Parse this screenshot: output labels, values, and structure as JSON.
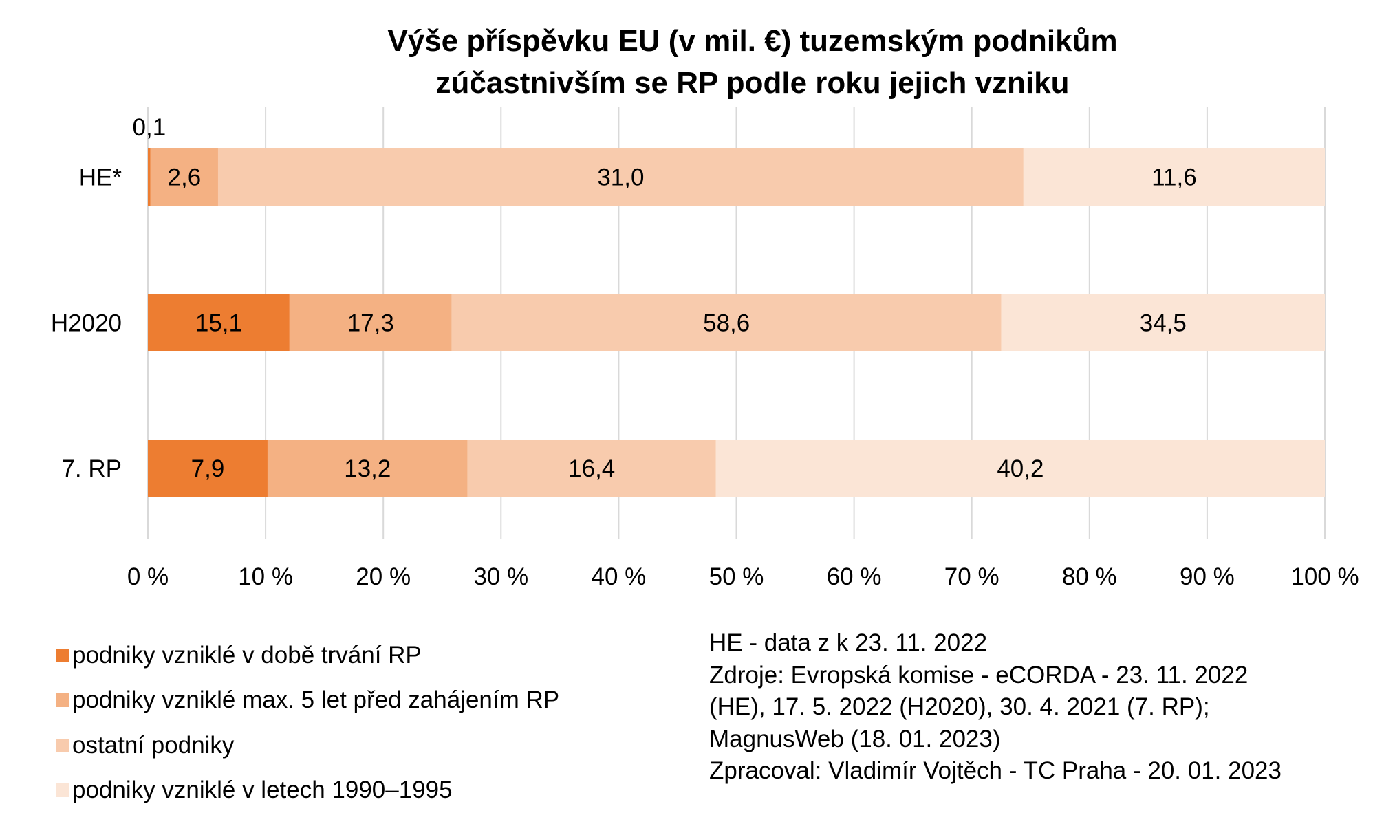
{
  "chart_data": {
    "type": "bar",
    "orientation": "horizontal",
    "stacked": "percent",
    "title": [
      "Výše příspěvku EU (v mil. €) tuzemským podnikům",
      "zúčastnivším se RP podle roku jejich vzniku"
    ],
    "categories": [
      "HE*",
      "H2020",
      "7. RP"
    ],
    "series": [
      {
        "name": "podniky vzniklé v době trvání RP",
        "color": "#ED7D31",
        "values": [
          0.1,
          15.1,
          7.9
        ],
        "labels": [
          "0,1",
          "15,1",
          "7,9"
        ]
      },
      {
        "name": "podniky vzniklé max. 5 let před zahájením RP",
        "color": "#F4B183",
        "values": [
          2.6,
          17.3,
          13.2
        ],
        "labels": [
          "2,6",
          "17,3",
          "13,2"
        ]
      },
      {
        "name": "ostatní podniky",
        "color": "#F8CBAD",
        "values": [
          31.0,
          58.6,
          16.4
        ],
        "labels": [
          "31,0",
          "58,6",
          "16,4"
        ]
      },
      {
        "name": "podniky vzniklé v letech 1990–1995",
        "color": "#FBE5D6",
        "values": [
          11.6,
          34.5,
          40.2
        ],
        "labels": [
          "11,6",
          "34,5",
          "40,2"
        ]
      }
    ],
    "xticks": [
      "0 %",
      "10 %",
      "20 %",
      "30 %",
      "40 %",
      "50 %",
      "60 %",
      "70 %",
      "80 %",
      "90 %",
      "100 %"
    ],
    "xlim": [
      0,
      100
    ],
    "grid": true,
    "legend_position": "bottom-left"
  },
  "notes": [
    "HE - data z k 23. 11. 2022",
    "Zdroje: Evropská komise - eCORDA - 23. 11. 2022",
    "(HE), 17. 5. 2022 (H2020), 30. 4. 2021 (7. RP);",
    "MagnusWeb (18. 01. 2023)",
    "Zpracoval: Vladimír Vojtěch - TC Praha - 20. 01. 2023"
  ]
}
